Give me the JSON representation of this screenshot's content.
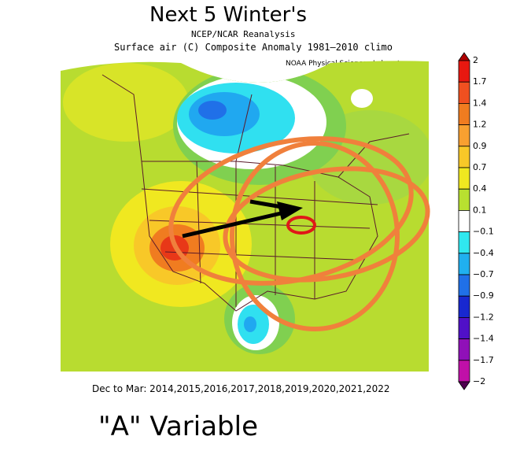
{
  "header": {
    "title": "Next 5 Winter's",
    "source": "NCEP/NCAR Reanalysis",
    "subtitle": "Surface air (C) Composite Anomaly 1981–2010 climo",
    "lab": "NOAA Physical Sciences Laboratory"
  },
  "footer": {
    "period": "Dec to Mar: 2014,2015,2016,2017,2018,2019,2020,2021,2022",
    "caption": "\"A\" Variable"
  },
  "colorbar": {
    "labels": [
      "2",
      "1.7",
      "1.4",
      "1.2",
      "0.9",
      "0.7",
      "0.4",
      "0.1",
      "−0.1",
      "−0.4",
      "−0.7",
      "−0.9",
      "−1.2",
      "−1.4",
      "−1.7",
      "−2"
    ],
    "colors": [
      "#b00000",
      "#e81810",
      "#f05020",
      "#f07c20",
      "#f8a030",
      "#f8c828",
      "#f0e820",
      "#b8e030",
      "#ffffff",
      "#30e8f0",
      "#20b0f0",
      "#2070e8",
      "#1828d0",
      "#5010c8",
      "#9010b8",
      "#c010a8",
      "#500050"
    ]
  }
}
